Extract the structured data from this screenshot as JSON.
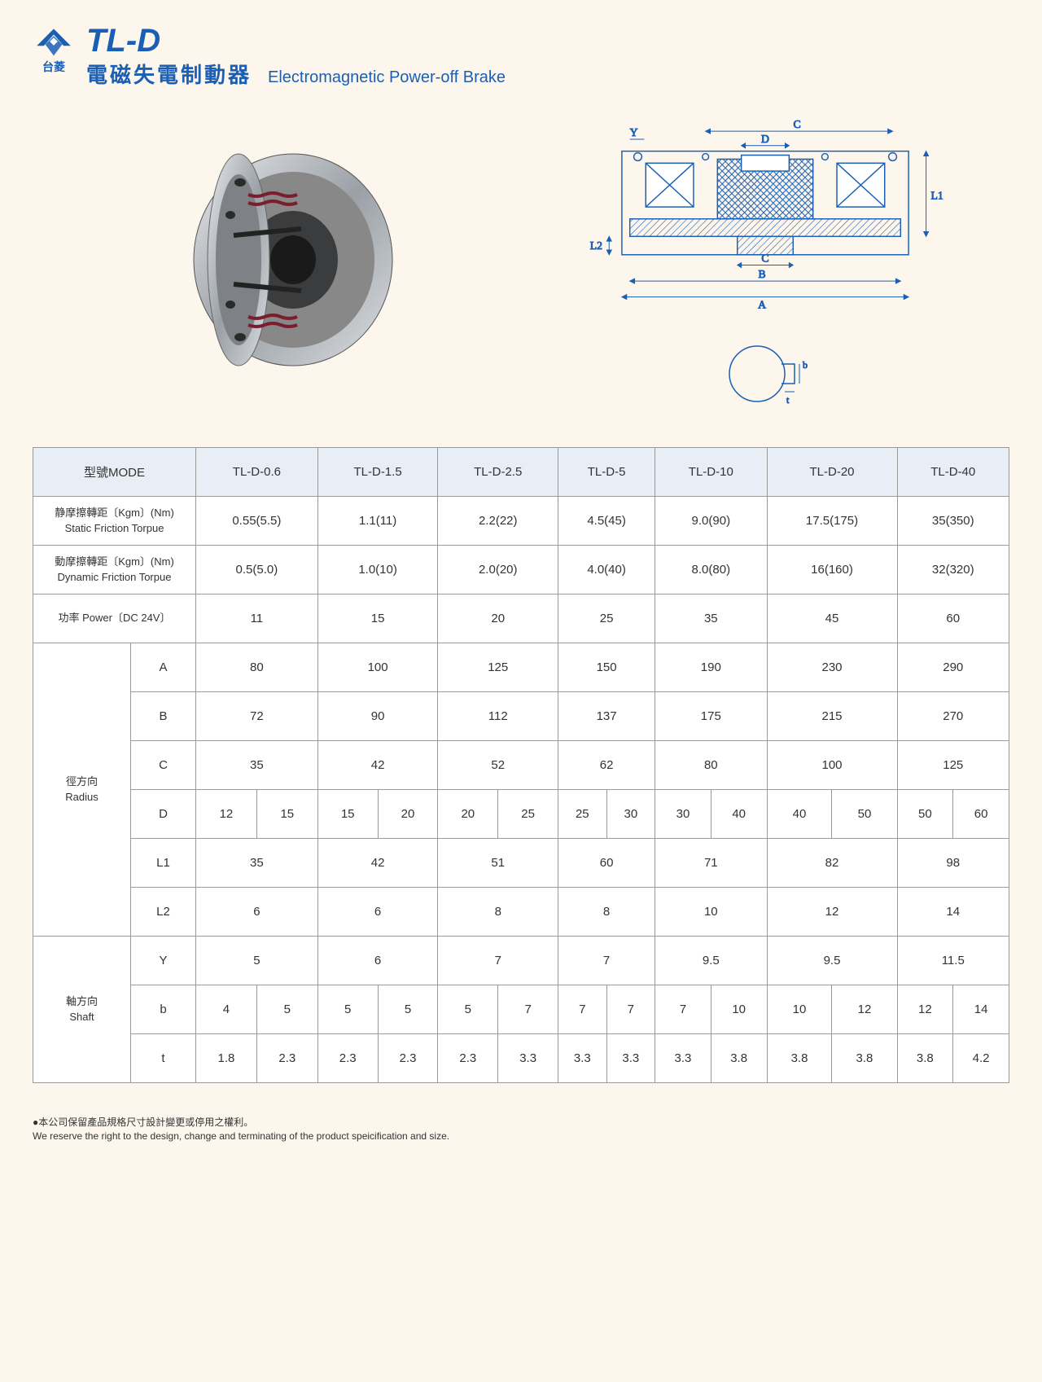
{
  "header": {
    "logo_sub": "台菱",
    "code": "TL-D",
    "title_cn": "電磁失電制動器",
    "title_en": "Electromagnetic Power-off Brake"
  },
  "colors": {
    "brand": "#1a5fb4",
    "table_header_bg": "#e8eef5",
    "border": "#999999",
    "page_bg": "#fdf6ed"
  },
  "table": {
    "mode_label": "型號MODE",
    "models": [
      "TL-D-0.6",
      "TL-D-1.5",
      "TL-D-2.5",
      "TL-D-5",
      "TL-D-10",
      "TL-D-20",
      "TL-D-40"
    ],
    "rows_full": [
      {
        "label_cn": "静摩擦轉距〔Kgm〕(Nm)",
        "label_en": "Static Friction Torpue",
        "values": [
          "0.55(5.5)",
          "1.1(11)",
          "2.2(22)",
          "4.5(45)",
          "9.0(90)",
          "17.5(175)",
          "35(350)"
        ]
      },
      {
        "label_cn": "動摩擦轉距〔Kgm〕(Nm)",
        "label_en": "Dynamic Friction Torpue",
        "values": [
          "0.5(5.0)",
          "1.0(10)",
          "2.0(20)",
          "4.0(40)",
          "8.0(80)",
          "16(160)",
          "32(320)"
        ]
      },
      {
        "label_cn": "功率 Power〔DC 24V〕",
        "label_en": "",
        "values": [
          "11",
          "15",
          "20",
          "25",
          "35",
          "45",
          "60"
        ]
      }
    ],
    "radius_group": {
      "label_cn": "徑方向",
      "label_en": "Radius",
      "rows": [
        {
          "key": "A",
          "split": false,
          "values": [
            "80",
            "100",
            "125",
            "150",
            "190",
            "230",
            "290"
          ]
        },
        {
          "key": "B",
          "split": false,
          "values": [
            "72",
            "90",
            "112",
            "137",
            "175",
            "215",
            "270"
          ]
        },
        {
          "key": "C",
          "split": false,
          "values": [
            "35",
            "42",
            "52",
            "62",
            "80",
            "100",
            "125"
          ]
        },
        {
          "key": "D",
          "split": true,
          "values": [
            [
              "12",
              "15"
            ],
            [
              "15",
              "20"
            ],
            [
              "20",
              "25"
            ],
            [
              "25",
              "30"
            ],
            [
              "30",
              "40"
            ],
            [
              "40",
              "50"
            ],
            [
              "50",
              "60"
            ]
          ]
        },
        {
          "key": "L1",
          "split": false,
          "values": [
            "35",
            "42",
            "51",
            "60",
            "71",
            "82",
            "98"
          ]
        },
        {
          "key": "L2",
          "split": false,
          "values": [
            "6",
            "6",
            "8",
            "8",
            "10",
            "12",
            "14"
          ]
        }
      ]
    },
    "shaft_group": {
      "label_cn": "軸方向",
      "label_en": "Shaft",
      "rows": [
        {
          "key": "Y",
          "split": false,
          "values": [
            "5",
            "6",
            "7",
            "7",
            "9.5",
            "9.5",
            "11.5"
          ]
        },
        {
          "key": "b",
          "split": true,
          "values": [
            [
              "4",
              "5"
            ],
            [
              "5",
              "5"
            ],
            [
              "5",
              "7"
            ],
            [
              "7",
              "7"
            ],
            [
              "7",
              "10"
            ],
            [
              "10",
              "12"
            ],
            [
              "12",
              "14"
            ]
          ]
        },
        {
          "key": "t",
          "split": true,
          "values": [
            [
              "1.8",
              "2.3"
            ],
            [
              "2.3",
              "2.3"
            ],
            [
              "2.3",
              "3.3"
            ],
            [
              "3.3",
              "3.3"
            ],
            [
              "3.3",
              "3.8"
            ],
            [
              "3.8",
              "3.8"
            ],
            [
              "3.8",
              "4.2"
            ]
          ]
        }
      ]
    }
  },
  "diagram_labels": [
    "A",
    "B",
    "C",
    "C",
    "D",
    "L1",
    "L2",
    "Y",
    "b",
    "t"
  ],
  "footer": {
    "cn": "●本公司保留產品規格尺寸設計變更或停用之權利。",
    "en": "We reserve the right to the design, change and terminating of the product speicification and size."
  }
}
